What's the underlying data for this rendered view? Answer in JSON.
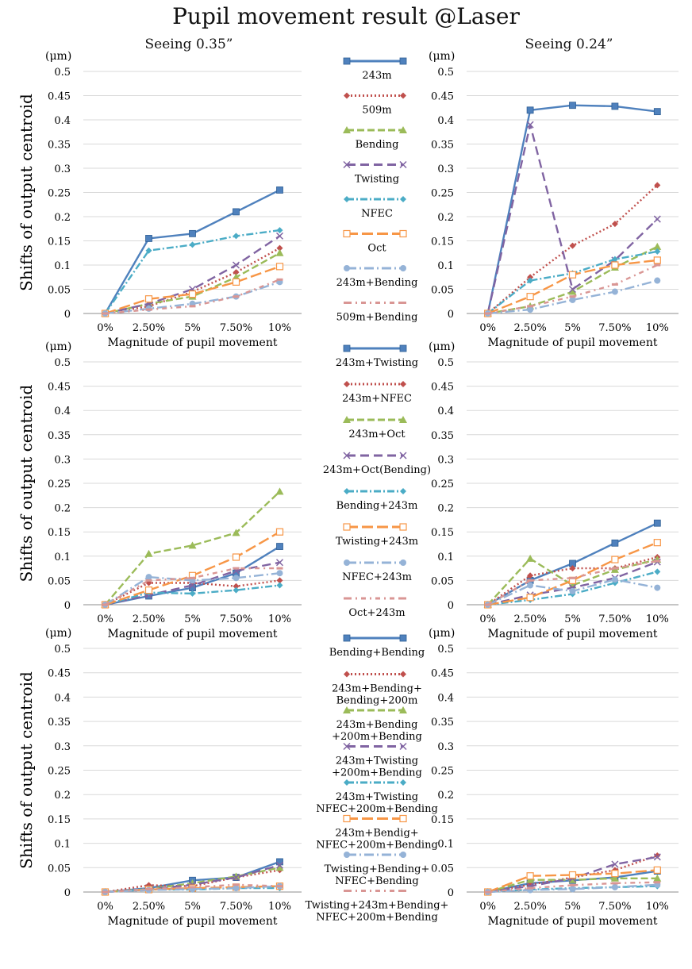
{
  "title": "Pupil movement result @Laser",
  "col_titles": [
    "Seeing 0.35”",
    "Seeing 0.24”"
  ],
  "unit_label": "(μm)",
  "ylabel": "Shifts of output centroid",
  "xlabel": "Magnitude of pupil movement",
  "styles": [
    {
      "color": "#4f81bd",
      "dash": "",
      "marker": "square"
    },
    {
      "color": "#c0504d",
      "dash": "2,3",
      "marker": "diamond"
    },
    {
      "color": "#9bbb59",
      "dash": "9,4",
      "marker": "triangle"
    },
    {
      "color": "#8064a2",
      "dash": "11,6",
      "marker": "x"
    },
    {
      "color": "#4bacc6",
      "dash": "9,3,2,3",
      "marker": "star"
    },
    {
      "color": "#f79646",
      "dash": "14,5",
      "marker": "square-open"
    },
    {
      "color": "#95b3d7",
      "dash": "12,4,2,4",
      "marker": "circle"
    },
    {
      "color": "#d99694",
      "dash": "6,5,2,5",
      "marker": "dash"
    }
  ],
  "legends": [
    [
      "243m",
      "509m",
      "Bending",
      "Twisting",
      "NFEC",
      "Oct",
      "243m+Bending",
      "509m+Bending"
    ],
    [
      "243m+Twisting",
      "243m+NFEC",
      "243m+Oct",
      "243m+Oct(Bending)",
      "Bending+243m",
      "Twisting+243m",
      "NFEC+243m",
      "Oct+243m"
    ],
    [
      "Bending+Bending",
      "243m+Bending+\nBending+200m",
      "243m+Bending\n+200m+Bending",
      "243m+Twisting\n+200m+Bending",
      "243m+Twisting\nNFEC+200m+Bending",
      "243m+Bendig+\nNFEC+200m+Bending",
      "Twisting+Bending+\nNFEC+Bending",
      "Twisting+243m+Bending+\nNFEC+200m+Bending"
    ]
  ],
  "chart_data": [
    {
      "type": "line",
      "row": 0,
      "col": 0,
      "categories": [
        "0%",
        "2.50%",
        "5%",
        "7.50%",
        "10%"
      ],
      "ylim": [
        0,
        0.5
      ],
      "yticks": [
        0,
        0.05,
        0.1,
        0.15,
        0.2,
        0.25,
        0.3,
        0.35,
        0.4,
        0.45,
        0.5
      ],
      "yticklabels": [
        "0",
        "0.05",
        "0.1",
        "0.15",
        "0.2",
        "0.25",
        "0.3",
        "0.35",
        "0.4",
        "0.45",
        "0.5"
      ],
      "xlabel": "Magnitude of pupil movement",
      "ylabel": "Shifts of output centroid",
      "legend_group": 0,
      "series": [
        {
          "name": "243m",
          "values": [
            0,
            0.155,
            0.165,
            0.21,
            0.255
          ]
        },
        {
          "name": "509m",
          "values": [
            0,
            0.015,
            0.045,
            0.085,
            0.135
          ]
        },
        {
          "name": "Bending",
          "values": [
            0,
            0.02,
            0.035,
            0.075,
            0.125
          ]
        },
        {
          "name": "Twisting",
          "values": [
            0,
            0.02,
            0.05,
            0.1,
            0.16
          ]
        },
        {
          "name": "NFEC",
          "values": [
            0,
            0.13,
            0.142,
            0.16,
            0.172
          ]
        },
        {
          "name": "Oct",
          "values": [
            0,
            0.03,
            0.04,
            0.065,
            0.097
          ]
        },
        {
          "name": "243m+Bending",
          "values": [
            0,
            0.01,
            0.02,
            0.035,
            0.065
          ]
        },
        {
          "name": "509m+Bending",
          "values": [
            0,
            0.008,
            0.015,
            0.035,
            0.07
          ]
        }
      ]
    },
    {
      "type": "line",
      "row": 0,
      "col": 1,
      "categories": [
        "0%",
        "2.50%",
        "5%",
        "7.50%",
        "10%"
      ],
      "ylim": [
        0,
        0.5
      ],
      "yticks": [
        0,
        0.05,
        0.1,
        0.15,
        0.2,
        0.25,
        0.3,
        0.35,
        0.4,
        0.45,
        0.5
      ],
      "yticklabels": [
        "0",
        "0.05",
        "0.1",
        "0.15",
        "0.2",
        "0.25",
        "0.3",
        "0.35",
        "0.4",
        "0.45",
        "0.5"
      ],
      "xlabel": "Magnitude of pupil movement",
      "ylabel": "",
      "legend_group": 0,
      "series": [
        {
          "name": "243m",
          "values": [
            0,
            0.42,
            0.43,
            0.428,
            0.417
          ]
        },
        {
          "name": "509m",
          "values": [
            0,
            0.075,
            0.14,
            0.185,
            0.265
          ]
        },
        {
          "name": "Bending",
          "values": [
            0,
            0.015,
            0.045,
            0.095,
            0.138
          ]
        },
        {
          "name": "Twisting",
          "values": [
            0,
            0.39,
            0.05,
            0.11,
            0.195
          ]
        },
        {
          "name": "NFEC",
          "values": [
            0,
            0.068,
            0.083,
            0.112,
            0.128
          ]
        },
        {
          "name": "Oct",
          "values": [
            0,
            0.035,
            0.08,
            0.1,
            0.11
          ]
        },
        {
          "name": "243m+Bending",
          "values": [
            0,
            0.008,
            0.028,
            0.045,
            0.068
          ]
        },
        {
          "name": "509m+Bending",
          "values": [
            0,
            0.015,
            0.035,
            0.06,
            0.1
          ]
        }
      ]
    },
    {
      "type": "line",
      "row": 1,
      "col": 0,
      "categories": [
        "0%",
        "2.50%",
        "5%",
        "7.50%",
        "10%"
      ],
      "ylim": [
        0,
        0.5
      ],
      "yticks": [
        0,
        0.05,
        0.1,
        0.15,
        0.2,
        0.25,
        0.3,
        0.35,
        0.4,
        0.45,
        0.5
      ],
      "yticklabels": [
        "0",
        "0.05",
        "0.1",
        "0.15",
        "0.2",
        "0.25",
        "0.3",
        "0.35",
        "0.4",
        "0.45",
        "0.5"
      ],
      "xlabel": "Magnitude of pupil movement",
      "ylabel": "Shifts of output centroid",
      "legend_group": 1,
      "series": [
        {
          "name": "243m+Twisting",
          "values": [
            0,
            0.018,
            0.035,
            0.065,
            0.12
          ]
        },
        {
          "name": "243m+NFEC",
          "values": [
            0,
            0.045,
            0.045,
            0.038,
            0.05
          ]
        },
        {
          "name": "243m+Oct",
          "values": [
            0,
            0.105,
            0.122,
            0.148,
            0.233
          ]
        },
        {
          "name": "243m+Oct(Bending)",
          "values": [
            0,
            0.02,
            0.04,
            0.07,
            0.087
          ]
        },
        {
          "name": "Bending+243m",
          "values": [
            0,
            0.025,
            0.023,
            0.03,
            0.04
          ]
        },
        {
          "name": "Twisting+243m",
          "values": [
            0,
            0.03,
            0.06,
            0.098,
            0.15
          ]
        },
        {
          "name": "NFEC+243m",
          "values": [
            0,
            0.057,
            0.05,
            0.055,
            0.065
          ]
        },
        {
          "name": "Oct+243m",
          "values": [
            0,
            0.05,
            0.055,
            0.075,
            0.075
          ]
        }
      ]
    },
    {
      "type": "line",
      "row": 1,
      "col": 1,
      "categories": [
        "0%",
        "2.50%",
        "5%",
        "7.50%",
        "10%"
      ],
      "ylim": [
        0,
        0.5
      ],
      "yticks": [
        0,
        0.05,
        0.1,
        0.15,
        0.2,
        0.25,
        0.3,
        0.35,
        0.4,
        0.45,
        0.5
      ],
      "yticklabels": [
        "0",
        "0.05",
        "0.1",
        "0.15",
        "0.2",
        "0.25",
        "0.3",
        "0.35",
        "0.4",
        "0.45",
        "0.5"
      ],
      "xlabel": "Magnitude of pupil movement",
      "ylabel": "",
      "legend_group": 1,
      "series": [
        {
          "name": "243m+Twisting",
          "values": [
            0,
            0.05,
            0.085,
            0.127,
            0.168
          ]
        },
        {
          "name": "243m+NFEC",
          "values": [
            0,
            0.06,
            0.075,
            0.075,
            0.098
          ]
        },
        {
          "name": "243m+Oct",
          "values": [
            0,
            0.095,
            0.04,
            0.072,
            0.093
          ]
        },
        {
          "name": "243m+Oct(Bending)",
          "values": [
            0,
            0.02,
            0.035,
            0.055,
            0.088
          ]
        },
        {
          "name": "Bending+243m",
          "values": [
            0,
            0.01,
            0.022,
            0.045,
            0.068
          ]
        },
        {
          "name": "Twisting+243m",
          "values": [
            0,
            0.015,
            0.05,
            0.093,
            0.128
          ]
        },
        {
          "name": "NFEC+243m",
          "values": [
            0,
            0.04,
            0.028,
            0.052,
            0.035
          ]
        },
        {
          "name": "Oct+243m",
          "values": [
            0,
            0.05,
            0.055,
            0.075,
            0.09
          ]
        }
      ]
    },
    {
      "type": "line",
      "row": 2,
      "col": 0,
      "categories": [
        "0%",
        "2.50%",
        "5%",
        "7.50%",
        "10%"
      ],
      "ylim": [
        0,
        0.5
      ],
      "yticks": [
        0,
        0.05,
        0.1,
        0.15,
        0.2,
        0.25,
        0.3,
        0.35,
        0.4,
        0.45,
        0.5
      ],
      "yticklabels": [
        "0",
        "0.05",
        "0.1",
        "0.15",
        "0.2",
        "0.25",
        "0.3",
        "0.35",
        "0.4",
        "0.45",
        "0.5"
      ],
      "xlabel": "Magnitude of pupil movement",
      "ylabel": "Shifts of output centroid",
      "legend_group": 2,
      "series": [
        {
          "name": "Bending+Bending",
          "values": [
            0,
            0.008,
            0.024,
            0.03,
            0.062
          ]
        },
        {
          "name": "243m+Bending+Bending+200m",
          "values": [
            0,
            0.014,
            0.012,
            0.03,
            0.045
          ]
        },
        {
          "name": "243m+Bending+200m+Bending",
          "values": [
            0,
            0.006,
            0.018,
            0.032,
            0.05
          ]
        },
        {
          "name": "243m+Twisting+200m+Bending",
          "values": [
            0,
            0.005,
            0.015,
            0.03,
            0.055
          ]
        },
        {
          "name": "243m+Twisting NFEC+200m+Bending",
          "values": [
            0,
            0.005,
            0.005,
            0.008,
            0.008
          ]
        },
        {
          "name": "243m+Bendig+NFEC+200m+Bending",
          "values": [
            0,
            0.005,
            0.008,
            0.01,
            0.012
          ]
        },
        {
          "name": "Twisting+Bending+NFEC+Bending",
          "values": [
            0,
            0.004,
            0.006,
            0.008,
            0.012
          ]
        },
        {
          "name": "Twisting+243m+Bending+NFEC+200m+Bending",
          "values": [
            0,
            0.006,
            0.01,
            0.015,
            0.012
          ]
        }
      ]
    },
    {
      "type": "line",
      "row": 2,
      "col": 1,
      "categories": [
        "0%",
        "2.50%",
        "5%",
        "7.50%",
        "10%"
      ],
      "ylim": [
        0,
        0.5
      ],
      "yticks": [
        0,
        0.05,
        0.1,
        0.15,
        0.2,
        0.25,
        0.3,
        0.35,
        0.4,
        0.45,
        0.5
      ],
      "yticklabels": [
        "0",
        "0.05",
        "0.1",
        "0.15",
        "0.2",
        "0.25",
        "0.3",
        "0.35",
        "0.4",
        "0.45",
        "0.5"
      ],
      "xlabel": "Magnitude of pupil movement",
      "ylabel": "",
      "legend_group": 2,
      "series": [
        {
          "name": "Bending+Bending",
          "values": [
            0,
            0.018,
            0.024,
            0.03,
            0.043
          ]
        },
        {
          "name": "243m+Bending+Bending+200m",
          "values": [
            0,
            0.015,
            0.03,
            0.045,
            0.075
          ]
        },
        {
          "name": "243m+Bending+200m+Bending",
          "values": [
            0,
            0.025,
            0.025,
            0.028,
            0.028
          ]
        },
        {
          "name": "243m+Twisting+200m+Bending",
          "values": [
            0,
            0.012,
            0.028,
            0.057,
            0.072
          ]
        },
        {
          "name": "243m+Twisting NFEC+200m+Bending",
          "values": [
            0,
            0.005,
            0.008,
            0.01,
            0.012
          ]
        },
        {
          "name": "243m+Bendig+NFEC+200m+Bending",
          "values": [
            0,
            0.033,
            0.035,
            0.038,
            0.045
          ]
        },
        {
          "name": "Twisting+Bending+NFEC+Bending",
          "values": [
            0,
            0.004,
            0.006,
            0.01,
            0.015
          ]
        },
        {
          "name": "Twisting+243m+Bending+NFEC+200m+Bending",
          "values": [
            0,
            0.008,
            0.014,
            0.018,
            0.02
          ]
        }
      ]
    }
  ]
}
